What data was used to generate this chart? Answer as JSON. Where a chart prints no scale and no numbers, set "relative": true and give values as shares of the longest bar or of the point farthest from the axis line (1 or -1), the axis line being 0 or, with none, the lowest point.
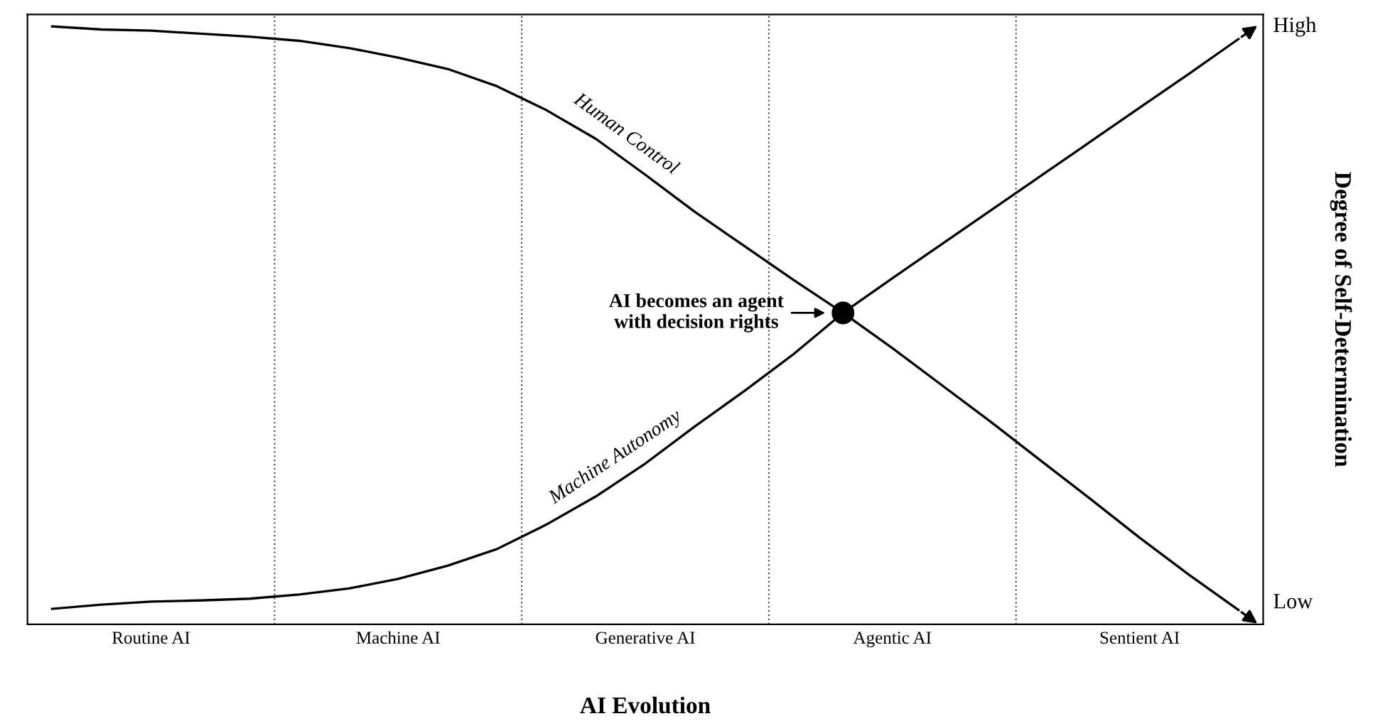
{
  "chart_data": {
    "type": "line",
    "relative": true,
    "xlabel": "AI Evolution",
    "ylabel": "Degree of Self-Determination",
    "categories": [
      null,
      null,
      "Routine AI",
      null,
      null,
      null,
      null,
      "Machine AI",
      null,
      null,
      null,
      null,
      "Generative AI",
      null,
      null,
      null,
      null,
      "Agentic AI",
      null,
      null,
      null,
      null,
      "Sentient AI",
      null,
      null
    ],
    "series": [
      {
        "name": "Human Control",
        "color": "#000000",
        "values": [
          1.0,
          0.995,
          0.993,
          0.988,
          0.983,
          0.976,
          0.964,
          0.948,
          0.929,
          0.9,
          0.86,
          0.812,
          0.752,
          0.69,
          0.633,
          0.576,
          0.521,
          0.462,
          0.4,
          0.338,
          0.274,
          0.21,
          0.145,
          0.083,
          0.024
        ]
      },
      {
        "name": "Machine Autonomy",
        "color": "#000000",
        "values": [
          0.026,
          0.033,
          0.038,
          0.04,
          0.043,
          0.05,
          0.06,
          0.076,
          0.098,
          0.126,
          0.167,
          0.214,
          0.269,
          0.331,
          0.39,
          0.452,
          0.521,
          0.579,
          0.636,
          0.693,
          0.75,
          0.807,
          0.864,
          0.921,
          0.979
        ]
      },
      {
        "type": "scatter",
        "marker": "circle",
        "color": "#000000",
        "values": [
          null,
          null,
          null,
          null,
          null,
          null,
          null,
          null,
          null,
          null,
          null,
          null,
          null,
          null,
          null,
          null,
          0.521,
          null,
          null,
          null,
          null,
          null,
          null,
          null,
          null
        ]
      }
    ],
    "annotations": [
      "AI becomes an agent\nwith decision rights",
      "High",
      "Low"
    ],
    "grid": false,
    "legend": false,
    "marker": "none",
    "line_style": "solid"
  }
}
